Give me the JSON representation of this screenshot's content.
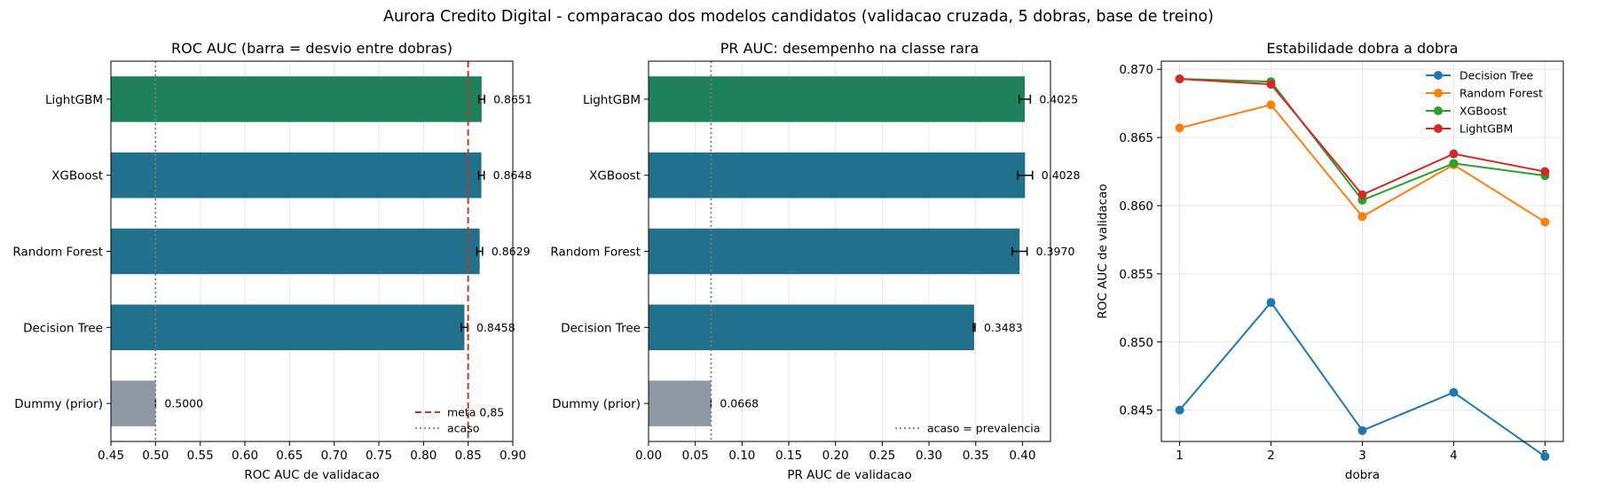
{
  "suptitle": "Aurora Credito Digital - comparacao dos modelos candidatos (validacao cruzada, 5 dobras, base de treino)",
  "colors": {
    "best": "#1d815b",
    "other": "#21708c",
    "dummy": "#8e99a4",
    "target": "#c0392b",
    "chance": "#7f7f7f"
  },
  "chart_data": [
    {
      "type": "bar",
      "orientation": "horizontal",
      "title": "ROC AUC (barra = desvio entre dobras)",
      "xlabel": "ROC AUC de validacao",
      "xlim": [
        0.45,
        0.9
      ],
      "xticks": [
        "0.45",
        "0.50",
        "0.55",
        "0.60",
        "0.65",
        "0.70",
        "0.75",
        "0.80",
        "0.85",
        "0.90"
      ],
      "categories": [
        "LightGBM",
        "XGBoost",
        "Random Forest",
        "Decision Tree",
        "Dummy (prior)"
      ],
      "values": [
        0.8651,
        0.8648,
        0.8629,
        0.8458,
        0.5
      ],
      "value_labels": [
        "0.8651",
        "0.8648",
        "0.8629",
        "0.8458",
        "0.5000"
      ],
      "errors": [
        0.0032,
        0.0031,
        0.0032,
        0.0035,
        0.0
      ],
      "bar_kind": [
        "best",
        "other",
        "other",
        "other",
        "dummy"
      ],
      "grid": true,
      "reference_lines": [
        {
          "value": 0.85,
          "style": "dashed",
          "color": "target",
          "label": "meta 0,85"
        },
        {
          "value": 0.5,
          "style": "dotted",
          "color": "chance",
          "label": "acaso"
        }
      ],
      "legend": "lower right"
    },
    {
      "type": "bar",
      "orientation": "horizontal",
      "title": "PR AUC: desempenho na classe rara",
      "xlabel": "PR AUC de validacao",
      "xlim": [
        0.0,
        0.43
      ],
      "xticks": [
        "0.00",
        "0.05",
        "0.10",
        "0.15",
        "0.20",
        "0.25",
        "0.30",
        "0.35",
        "0.40"
      ],
      "categories": [
        "LightGBM",
        "XGBoost",
        "Random Forest",
        "Decision Tree",
        "Dummy (prior)"
      ],
      "values": [
        0.4025,
        0.4028,
        0.397,
        0.3483,
        0.0668
      ],
      "value_labels": [
        "0.4025",
        "0.4028",
        "0.3970",
        "0.3483",
        "0.0668"
      ],
      "errors": [
        0.006,
        0.008,
        0.008,
        0.001,
        0.0
      ],
      "bar_kind": [
        "best",
        "other",
        "other",
        "other",
        "dummy"
      ],
      "grid": true,
      "reference_lines": [
        {
          "value": 0.0668,
          "style": "dotted",
          "color": "chance",
          "label": "acaso = prevalencia"
        }
      ],
      "legend": "lower right"
    },
    {
      "type": "line",
      "title": "Estabilidade dobra a dobra",
      "xlabel": "dobra",
      "ylabel": "ROC AUC de validacao",
      "x": [
        1,
        2,
        3,
        4,
        5
      ],
      "xticks": [
        "1",
        "2",
        "3",
        "4",
        "5"
      ],
      "ylim": [
        0.8427,
        0.8706
      ],
      "yticks": [
        "0.845",
        "0.850",
        "0.855",
        "0.860",
        "0.865",
        "0.870"
      ],
      "grid": true,
      "legend": "upper right",
      "series": [
        {
          "name": "Decision Tree",
          "color": "#1f77b4",
          "values": [
            0.845,
            0.8529,
            0.8435,
            0.8463,
            0.8416
          ]
        },
        {
          "name": "Random Forest",
          "color": "#ff7f0e",
          "values": [
            0.8657,
            0.8674,
            0.8592,
            0.863,
            0.8588
          ]
        },
        {
          "name": "XGBoost",
          "color": "#2ca02c",
          "values": [
            0.8693,
            0.8691,
            0.8604,
            0.8631,
            0.8622
          ]
        },
        {
          "name": "LightGBM",
          "color": "#d62728",
          "values": [
            0.8693,
            0.8689,
            0.8608,
            0.8638,
            0.8625
          ]
        }
      ]
    }
  ]
}
